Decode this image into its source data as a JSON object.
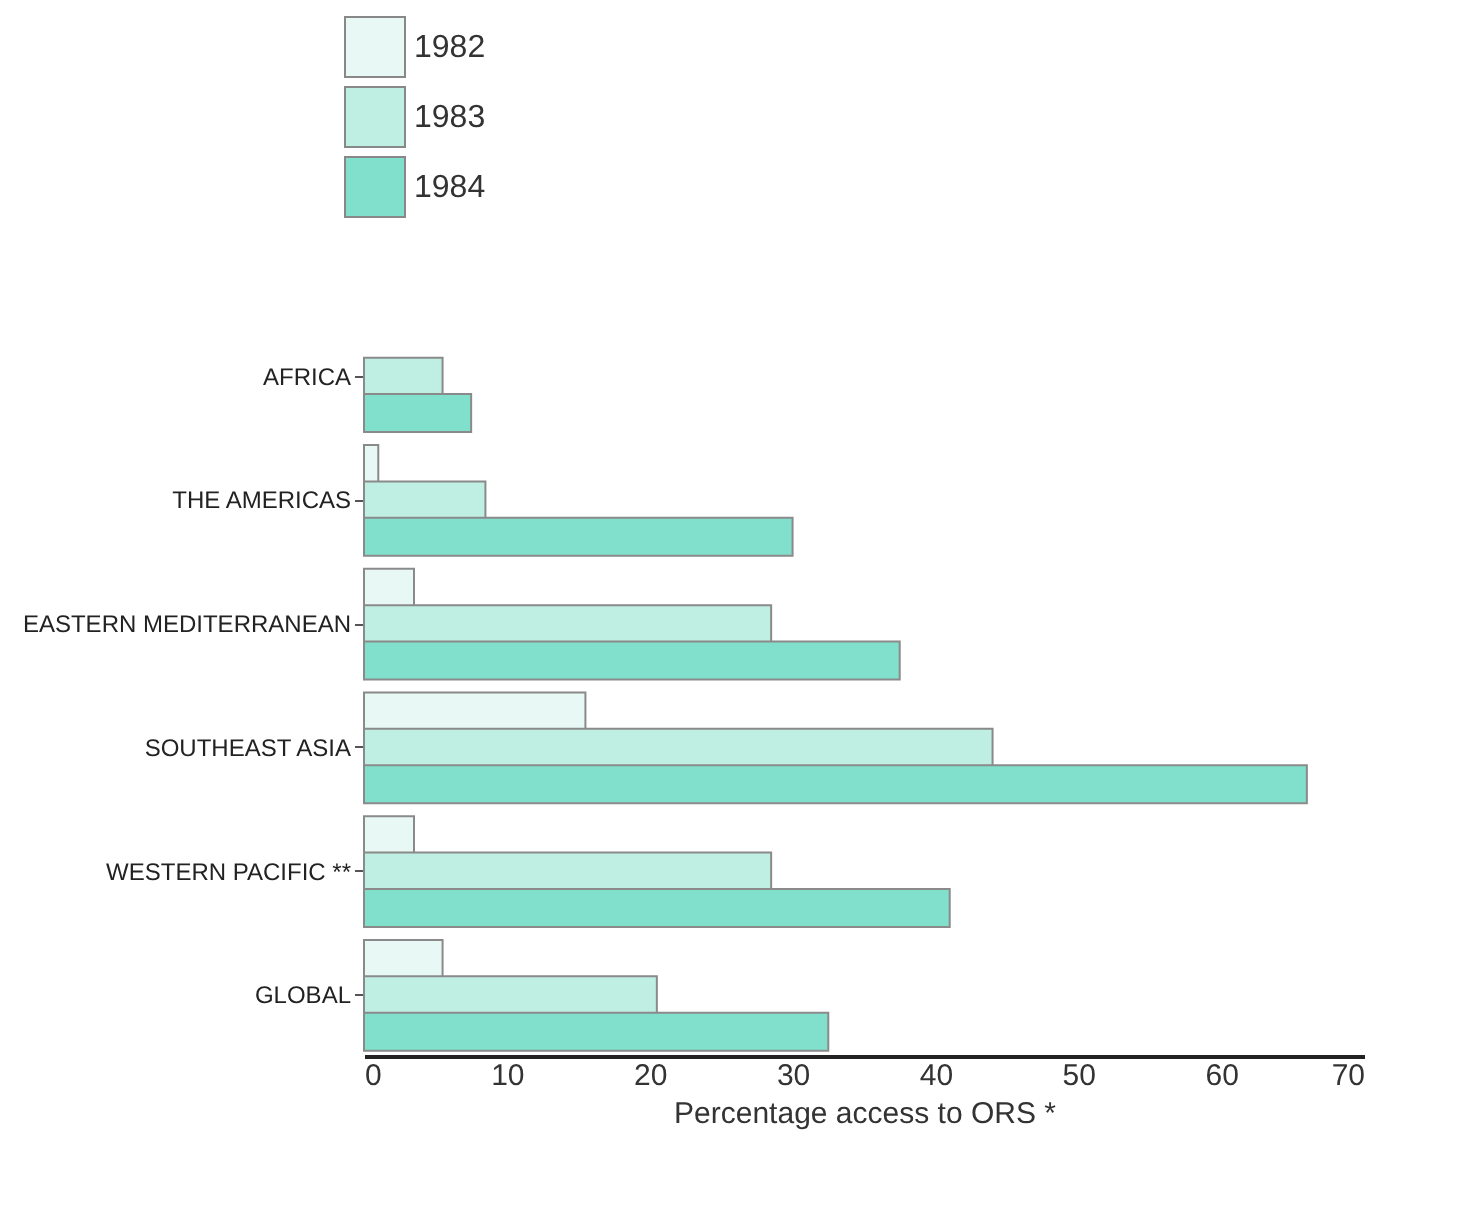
{
  "chart_data": {
    "type": "bar",
    "orientation": "horizontal",
    "xlabel": "Percentage access to ORS *",
    "categories": [
      "AFRICA",
      "THE AMERICAS",
      "EASTERN MEDITERRANEAN",
      "SOUTHEAST ASIA",
      "WESTERN PACIFIC **",
      "GLOBAL"
    ],
    "series": [
      {
        "name": "1982",
        "color": "#e8f8f4",
        "values": [
          null,
          1,
          3.5,
          15.5,
          3.5,
          5.5
        ]
      },
      {
        "name": "1983",
        "color": "#bfeee3",
        "values": [
          5.5,
          8.5,
          28.5,
          44,
          28.5,
          20.5
        ]
      },
      {
        "name": "1984",
        "color": "#80e0cc",
        "values": [
          7.5,
          30,
          37.5,
          66,
          41,
          32.5
        ]
      }
    ],
    "xlim": [
      0,
      70
    ],
    "xticks": [
      0,
      10,
      20,
      30,
      40,
      50,
      60,
      70
    ],
    "legend": "top left",
    "grid": false
  }
}
